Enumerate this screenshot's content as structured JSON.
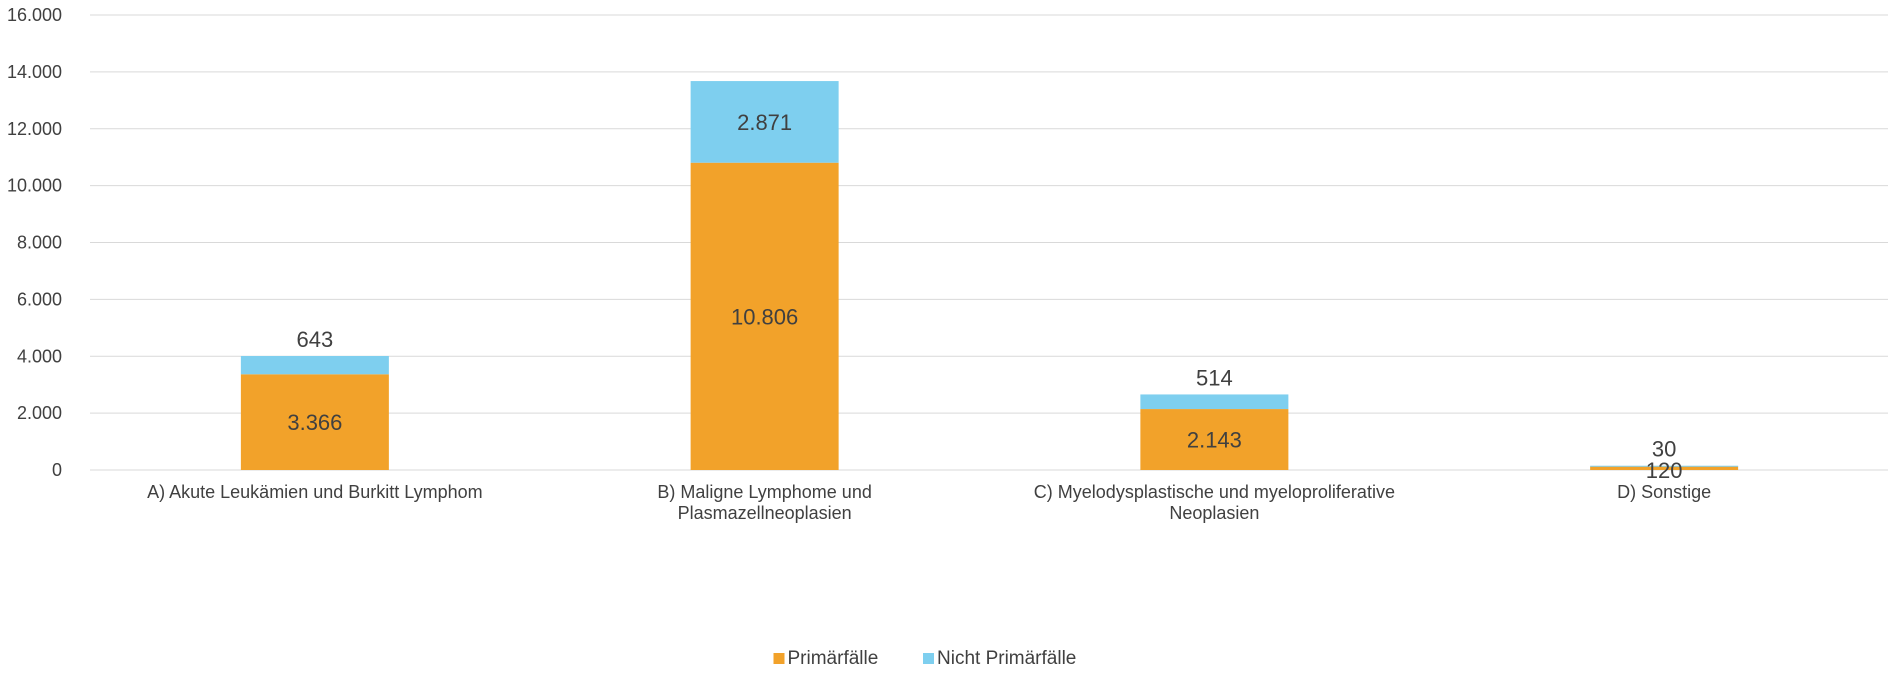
{
  "chart_data": {
    "type": "bar",
    "stacked": true,
    "categories": [
      [
        "A) Akute Leukämien und Burkitt Lymphom"
      ],
      [
        "B) Maligne Lymphome und",
        "Plasmazellneoplasien"
      ],
      [
        "C) Myelodysplastische und myeloproliferative",
        "Neoplasien"
      ],
      [
        "D) Sonstige"
      ]
    ],
    "series": [
      {
        "name": "Primärfälle",
        "color": "#F2A22A",
        "values": [
          3366,
          10806,
          2143,
          120
        ],
        "labels": [
          "3.366",
          "10.806",
          "2.143",
          "120"
        ]
      },
      {
        "name": "Nicht Primärfälle",
        "color": "#7ECFEF",
        "values": [
          643,
          2871,
          514,
          30
        ],
        "labels": [
          "643",
          "2.871",
          "514",
          "30"
        ]
      }
    ],
    "ylim": [
      0,
      16000
    ],
    "yticks": [
      {
        "value": 0,
        "label": "0"
      },
      {
        "value": 2000,
        "label": "2.000"
      },
      {
        "value": 4000,
        "label": "4.000"
      },
      {
        "value": 6000,
        "label": "6.000"
      },
      {
        "value": 8000,
        "label": "8.000"
      },
      {
        "value": 10000,
        "label": "10.000"
      },
      {
        "value": 12000,
        "label": "12.000"
      },
      {
        "value": 14000,
        "label": "14.000"
      },
      {
        "value": 16000,
        "label": "16.000"
      }
    ],
    "grid": true,
    "legend_position": "bottom-center"
  }
}
